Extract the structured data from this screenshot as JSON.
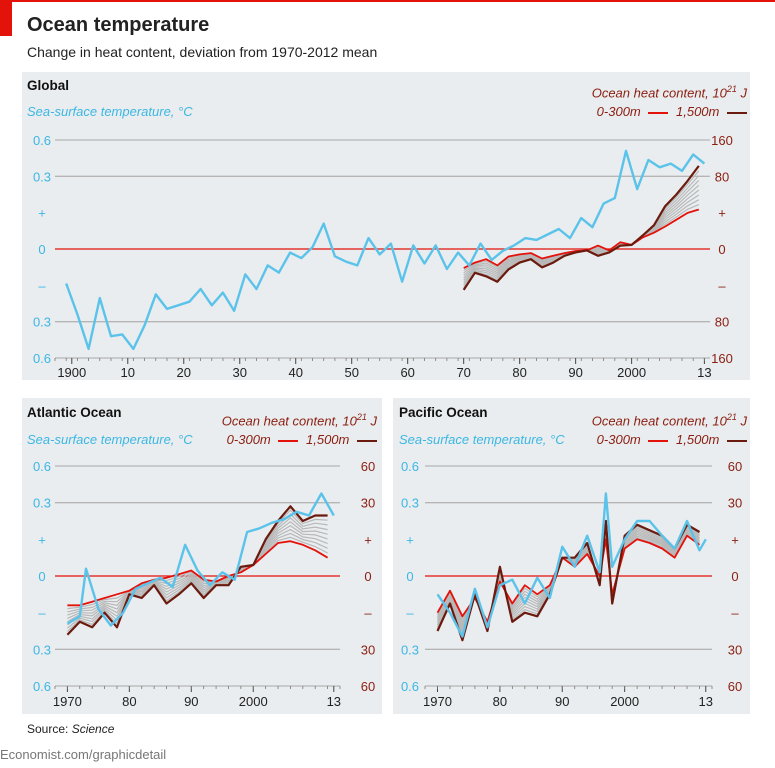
{
  "header": {
    "title": "Ocean temperature",
    "subtitle": "Change in heat content, deviation from 1970-2012 mean"
  },
  "source": {
    "label": "Source:",
    "name": "Science"
  },
  "footer": {
    "url": "Economist.com/graphicdetail"
  },
  "colors": {
    "sst": "#5bc3ea",
    "ohc300": "#e3120b",
    "ohc1500": "#6b1a0e",
    "ensemble": "#b8b8b8",
    "zero": "#e3120b",
    "grid": "#b5b5b5",
    "panel": "#e9edf0"
  },
  "chart_data": [
    {
      "type": "line",
      "title": "Global",
      "left_axis_label": "Sea-surface temperature, °C",
      "right_axis_label": "Ocean heat content, 10",
      "right_axis_sup": "21",
      "right_axis_unit": " J",
      "legend": {
        "ohc300": "0-300m",
        "ohc1500": "1,500m"
      },
      "xlim": [
        1897,
        2014
      ],
      "x_ticks": [
        1900,
        1910,
        1920,
        1930,
        1940,
        1950,
        1960,
        1970,
        1980,
        1990,
        2000,
        2013
      ],
      "x_tick_labels": [
        "1900",
        "10",
        "20",
        "30",
        "40",
        "50",
        "60",
        "70",
        "80",
        "90",
        "2000",
        "13"
      ],
      "left_ylim": [
        -0.6,
        0.6
      ],
      "left_ticks": [
        "0.6",
        "0.3",
        "+",
        "0",
        "–",
        "0.3",
        "0.6"
      ],
      "right_ylim": [
        -160,
        160
      ],
      "right_ticks": [
        "160",
        "80",
        "+",
        "0",
        "–",
        "80",
        "160"
      ],
      "sst": {
        "x": [
          1899,
          1901,
          1903,
          1905,
          1907,
          1909,
          1911,
          1913,
          1915,
          1917,
          1919,
          1921,
          1923,
          1925,
          1927,
          1929,
          1931,
          1933,
          1935,
          1937,
          1939,
          1941,
          1943,
          1945,
          1947,
          1949,
          1951,
          1953,
          1955,
          1957,
          1959,
          1961,
          1963,
          1965,
          1967,
          1969,
          1971,
          1973,
          1975,
          1977,
          1979,
          1981,
          1983,
          1985,
          1987,
          1989,
          1991,
          1993,
          1995,
          1997,
          1999,
          2001,
          2003,
          2005,
          2007,
          2009,
          2011,
          2013
        ],
        "y": [
          -0.19,
          -0.36,
          -0.55,
          -0.27,
          -0.48,
          -0.47,
          -0.55,
          -0.42,
          -0.25,
          -0.33,
          -0.31,
          -0.29,
          -0.22,
          -0.31,
          -0.24,
          -0.34,
          -0.14,
          -0.22,
          -0.09,
          -0.13,
          -0.02,
          -0.05,
          0.01,
          0.14,
          -0.04,
          -0.07,
          -0.09,
          0.06,
          -0.03,
          0.03,
          -0.18,
          0.02,
          -0.08,
          0.02,
          -0.11,
          -0.02,
          -0.09,
          0.03,
          -0.06,
          -0.01,
          0.02,
          0.06,
          0.05,
          0.08,
          0.11,
          0.06,
          0.17,
          0.12,
          0.25,
          0.28,
          0.54,
          0.33,
          0.49,
          0.45,
          0.47,
          0.43,
          0.52,
          0.47
        ]
      },
      "ohc300": {
        "x": [
          1970,
          1972,
          1974,
          1976,
          1978,
          1980,
          1982,
          1984,
          1986,
          1988,
          1990,
          1992,
          1994,
          1996,
          1998,
          2000,
          2002,
          2004,
          2006,
          2008,
          2010,
          2012
        ],
        "y": [
          -28,
          -20,
          -15,
          -24,
          -11,
          -8,
          -6,
          -14,
          -10,
          -6,
          -3,
          -2,
          5,
          -2,
          10,
          6,
          17,
          24,
          33,
          43,
          53,
          58
        ]
      },
      "ohc1500": {
        "x": [
          1970,
          1972,
          1974,
          1976,
          1978,
          1980,
          1982,
          1984,
          1986,
          1988,
          1990,
          1992,
          1994,
          1996,
          1998,
          2000,
          2002,
          2004,
          2006,
          2008,
          2010,
          2012
        ],
        "y": [
          -60,
          -35,
          -40,
          -48,
          -30,
          -20,
          -15,
          -27,
          -20,
          -10,
          -5,
          -2,
          -10,
          -5,
          5,
          6,
          20,
          35,
          63,
          80,
          100,
          122
        ]
      }
    },
    {
      "type": "line",
      "title": "Atlantic Ocean",
      "left_axis_label": "Sea-surface temperature, °C",
      "right_axis_label": "Ocean heat content, 10",
      "right_axis_sup": "21",
      "right_axis_unit": " J",
      "legend": {
        "ohc300": "0-300m",
        "ohc1500": "1,500m"
      },
      "xlim": [
        1968,
        2014
      ],
      "x_ticks": [
        1970,
        1980,
        1990,
        2000,
        2013
      ],
      "x_tick_labels": [
        "1970",
        "80",
        "90",
        "2000",
        "13"
      ],
      "left_ylim": [
        -0.6,
        0.6
      ],
      "left_ticks": [
        "0.6",
        "0.3",
        "+",
        "0",
        "–",
        "0.3",
        "0.6"
      ],
      "right_ylim": [
        -60,
        60
      ],
      "right_ticks": [
        "60",
        "30",
        "+",
        "0",
        "–",
        "30",
        "60"
      ],
      "sst": {
        "x": [
          1970,
          1972,
          1973,
          1975,
          1977,
          1979,
          1981,
          1983,
          1985,
          1987,
          1989,
          1991,
          1993,
          1995,
          1997,
          1999,
          2001,
          2003,
          2005,
          2007,
          2009,
          2011,
          2013
        ],
        "y": [
          -0.26,
          -0.22,
          0.04,
          -0.18,
          -0.27,
          -0.2,
          -0.07,
          -0.04,
          -0.01,
          -0.06,
          0.17,
          0.03,
          -0.05,
          0.02,
          -0.02,
          0.24,
          0.26,
          0.29,
          0.31,
          0.35,
          0.33,
          0.45,
          0.33
        ]
      },
      "ohc300": {
        "x": [
          1970,
          1972,
          1974,
          1976,
          1978,
          1980,
          1982,
          1984,
          1986,
          1988,
          1990,
          1992,
          1994,
          1996,
          1998,
          2000,
          2002,
          2004,
          2006,
          2008,
          2010,
          2012
        ],
        "y": [
          -16,
          -16,
          -14,
          -12,
          -10,
          -8,
          -4,
          -2,
          -1,
          1,
          3,
          -2,
          -3,
          0,
          2,
          6,
          12,
          18,
          19,
          17,
          14,
          10
        ]
      },
      "ohc1500": {
        "x": [
          1970,
          1972,
          1974,
          1976,
          1978,
          1980,
          1982,
          1984,
          1986,
          1988,
          1990,
          1992,
          1994,
          1996,
          1998,
          2000,
          2002,
          2004,
          2006,
          2008,
          2010,
          2012
        ],
        "y": [
          -32,
          -25,
          -28,
          -20,
          -28,
          -10,
          -12,
          -5,
          -15,
          -10,
          -4,
          -12,
          -5,
          -5,
          5,
          6,
          20,
          30,
          38,
          30,
          33,
          33
        ]
      }
    },
    {
      "type": "line",
      "title": "Pacific Ocean",
      "left_axis_label": "Sea-surface temperature, °C",
      "right_axis_label": "Ocean heat content, 10",
      "right_axis_sup": "21",
      "right_axis_unit": " J",
      "legend": {
        "ohc300": "0-300m",
        "ohc1500": "1,500m"
      },
      "xlim": [
        1968,
        2014
      ],
      "x_ticks": [
        1970,
        1980,
        1990,
        2000,
        2013
      ],
      "x_tick_labels": [
        "1970",
        "80",
        "90",
        "2000",
        "13"
      ],
      "left_ylim": [
        -0.6,
        0.6
      ],
      "left_ticks": [
        "0.6",
        "0.3",
        "+",
        "0",
        "–",
        "0.3",
        "0.6"
      ],
      "right_ylim": [
        -60,
        60
      ],
      "right_ticks": [
        "60",
        "30",
        "+",
        "0",
        "–",
        "30",
        "60"
      ],
      "sst": {
        "x": [
          1970,
          1972,
          1974,
          1976,
          1978,
          1980,
          1982,
          1984,
          1986,
          1988,
          1990,
          1992,
          1994,
          1996,
          1997,
          1998,
          2000,
          2002,
          2004,
          2006,
          2008,
          2010,
          2012,
          2013
        ],
        "y": [
          -0.1,
          -0.2,
          -0.33,
          -0.07,
          -0.28,
          -0.05,
          -0.02,
          -0.15,
          -0.01,
          -0.12,
          0.16,
          0.05,
          0.22,
          0.02,
          0.45,
          0.05,
          0.2,
          0.3,
          0.3,
          0.22,
          0.15,
          0.3,
          0.14,
          0.2
        ]
      },
      "ohc300": {
        "x": [
          1970,
          1972,
          1974,
          1976,
          1978,
          1980,
          1982,
          1984,
          1986,
          1988,
          1990,
          1992,
          1994,
          1996,
          1997,
          1998,
          2000,
          2002,
          2004,
          2006,
          2008,
          2010,
          2012
        ],
        "y": [
          -20,
          -8,
          -22,
          -12,
          -25,
          -3,
          -15,
          -5,
          -10,
          -5,
          10,
          5,
          12,
          0,
          20,
          -10,
          15,
          20,
          18,
          15,
          10,
          22,
          17
        ]
      },
      "ohc1500": {
        "x": [
          1970,
          1972,
          1974,
          1976,
          1978,
          1980,
          1982,
          1984,
          1986,
          1988,
          1990,
          1992,
          1994,
          1996,
          1997,
          1998,
          2000,
          2002,
          2004,
          2006,
          2008,
          2010,
          2012
        ],
        "y": [
          -30,
          -15,
          -35,
          -10,
          -30,
          5,
          -25,
          -20,
          -22,
          -10,
          10,
          10,
          18,
          -5,
          30,
          -15,
          22,
          28,
          25,
          22,
          15,
          28,
          24
        ]
      }
    }
  ]
}
